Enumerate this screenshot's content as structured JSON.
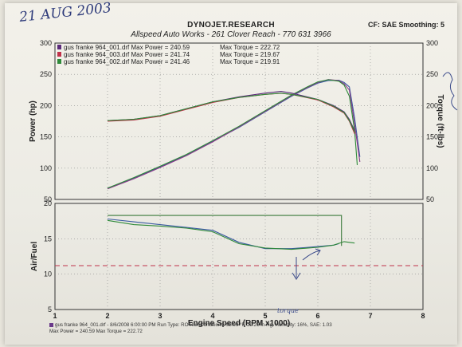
{
  "header": {
    "handwritten_date": "21 AUG 2003",
    "brand": "DYNOJET.RESEARCH",
    "shop": "Allspeed Auto Works - 261 Clover Reach - 770 631 3966",
    "cf_smoothing": "CF: SAE  Smoothing: 5"
  },
  "legend": [
    {
      "file": "gus franke 964_001.drf",
      "max_power_label": "Max Power =",
      "max_power": "240.59",
      "max_torque_label": "Max Torque =",
      "max_torque": "222.72",
      "color": "#5a2a7a"
    },
    {
      "file": "gus franke 964_003.drf",
      "max_power_label": "Max Power =",
      "max_power": "241.74",
      "max_torque_label": "Max Torque =",
      "max_torque": "219.67",
      "color": "#c0324a"
    },
    {
      "file": "gus franke 964_002.drf",
      "max_power_label": "Max Power =",
      "max_power": "241.46",
      "max_torque_label": "Max Torque =",
      "max_torque": "219.91",
      "color": "#2f8a3a"
    }
  ],
  "footer": {
    "line1": "gus franke 964_001.drf - 8/6/2008 6:00:00 PM  Run Type: RO  Run Conditions: 95.99 °F, 29.26 in-Hg,  Humidity: 16%, SAE: 1.03",
    "line2": "Max Power = 240.59  Max Torque = 222.72"
  },
  "annotations": {
    "handwritten_note": "torque"
  },
  "chart_data": [
    {
      "type": "line",
      "ylabel": "Power (hp)",
      "y2label": "Torque (ft-lbs)",
      "yticks": [
        50,
        100,
        150,
        200,
        250,
        300
      ],
      "y2ticks": [
        50,
        100,
        150,
        200,
        250,
        300
      ],
      "ylim": [
        50,
        300
      ],
      "xlim": [
        1,
        8
      ],
      "grid": true,
      "legend_position": "top-left",
      "series": [
        {
          "name": "gus franke 964_001.drf",
          "color": "#3a5aa0",
          "kind": "power",
          "x": [
            2.0,
            2.5,
            3.0,
            3.5,
            4.0,
            4.5,
            5.0,
            5.5,
            5.8,
            6.0,
            6.2,
            6.4,
            6.5,
            6.6,
            6.7,
            6.8
          ],
          "y": [
            68,
            84,
            102,
            121,
            143,
            165,
            190,
            215,
            228,
            236,
            240,
            240.6,
            237,
            230,
            180,
            118
          ]
        },
        {
          "name": "gus franke 964_003.drf",
          "color": "#8a3a8a",
          "kind": "power",
          "x": [
            2.0,
            2.5,
            3.0,
            3.5,
            4.0,
            4.5,
            5.0,
            5.5,
            5.8,
            6.0,
            6.2,
            6.4,
            6.5,
            6.6,
            6.7,
            6.8
          ],
          "y": [
            67,
            83,
            101,
            120,
            142,
            166,
            191,
            216,
            229,
            237,
            241.7,
            240,
            235,
            225,
            170,
            110
          ]
        },
        {
          "name": "gus franke 964_002.drf",
          "color": "#2f8a3a",
          "kind": "power",
          "x": [
            2.0,
            2.5,
            3.0,
            3.5,
            4.0,
            4.5,
            5.0,
            5.5,
            5.8,
            6.0,
            6.2,
            6.4,
            6.5,
            6.6,
            6.7,
            6.75
          ],
          "y": [
            68,
            85,
            103,
            122,
            144,
            167,
            192,
            217,
            230,
            238,
            241.5,
            239,
            233,
            215,
            160,
            105
          ]
        },
        {
          "name": "gus franke 964_001.drf",
          "color": "#5a2a7a",
          "kind": "torque",
          "x": [
            2.0,
            2.5,
            3.0,
            3.5,
            4.0,
            4.5,
            5.0,
            5.3,
            5.5,
            6.0,
            6.3,
            6.5,
            6.6,
            6.7
          ],
          "y": [
            176,
            178,
            184,
            195,
            206,
            214,
            220,
            222.7,
            220,
            210,
            200,
            190,
            178,
            160
          ]
        },
        {
          "name": "gus franke 964_003.drf",
          "color": "#c0324a",
          "kind": "torque",
          "x": [
            2.0,
            2.5,
            3.0,
            3.5,
            4.0,
            4.5,
            5.0,
            5.3,
            5.5,
            6.0,
            6.3,
            6.5,
            6.6,
            6.7
          ],
          "y": [
            175,
            177,
            183,
            194,
            205,
            213,
            218,
            219.7,
            218,
            209,
            198,
            188,
            175,
            155
          ]
        },
        {
          "name": "gus franke 964_002.drf",
          "color": "#2f8a3a",
          "kind": "torque",
          "x": [
            2.0,
            2.5,
            3.0,
            3.5,
            4.0,
            4.5,
            5.0,
            5.3,
            5.5,
            6.0,
            6.3,
            6.5,
            6.6,
            6.7
          ],
          "y": [
            176,
            178,
            184,
            195,
            206,
            213,
            218,
            219.9,
            218,
            210,
            199,
            189,
            176,
            158
          ]
        }
      ]
    },
    {
      "type": "line",
      "ylabel": "Air/Fuel",
      "xlabel": "Engine Speed (RPM x1000)",
      "xticks": [
        1,
        2,
        3,
        4,
        5,
        6,
        7,
        8
      ],
      "yticks": [
        5,
        10,
        15,
        20
      ],
      "ylim": [
        5,
        20
      ],
      "xlim": [
        1,
        8
      ],
      "grid": true,
      "reference_line": {
        "y": 11.2,
        "color": "#c0324a",
        "style": "dashed"
      },
      "series": [
        {
          "name": "gus franke 964_001.drf",
          "color": "#3a5aa0",
          "x": [
            2.0,
            2.5,
            3.0,
            3.5,
            4.0,
            4.5,
            5.0,
            5.5,
            6.0,
            6.3,
            6.4
          ],
          "y": [
            17.8,
            17.4,
            17.0,
            16.6,
            16.2,
            14.5,
            13.6,
            13.6,
            13.9,
            14.1,
            14.3
          ]
        },
        {
          "name": "gus franke 964_003.drf",
          "color": "#2f8a3a",
          "x": [
            2.0,
            2.5,
            3.0,
            3.5,
            4.0,
            4.5,
            5.0,
            5.5,
            6.0,
            6.3,
            6.5,
            6.7
          ],
          "y": [
            17.6,
            17.0,
            16.8,
            16.5,
            16.0,
            14.3,
            13.7,
            13.5,
            13.8,
            14.1,
            14.6,
            14.4
          ]
        },
        {
          "name": "gus franke 964_002.drf",
          "color": "#3a7a3a",
          "x": [
            2.0,
            6.4,
            6.45,
            6.45
          ],
          "y": [
            18.3,
            18.3,
            18.3,
            14.0
          ]
        }
      ]
    }
  ]
}
